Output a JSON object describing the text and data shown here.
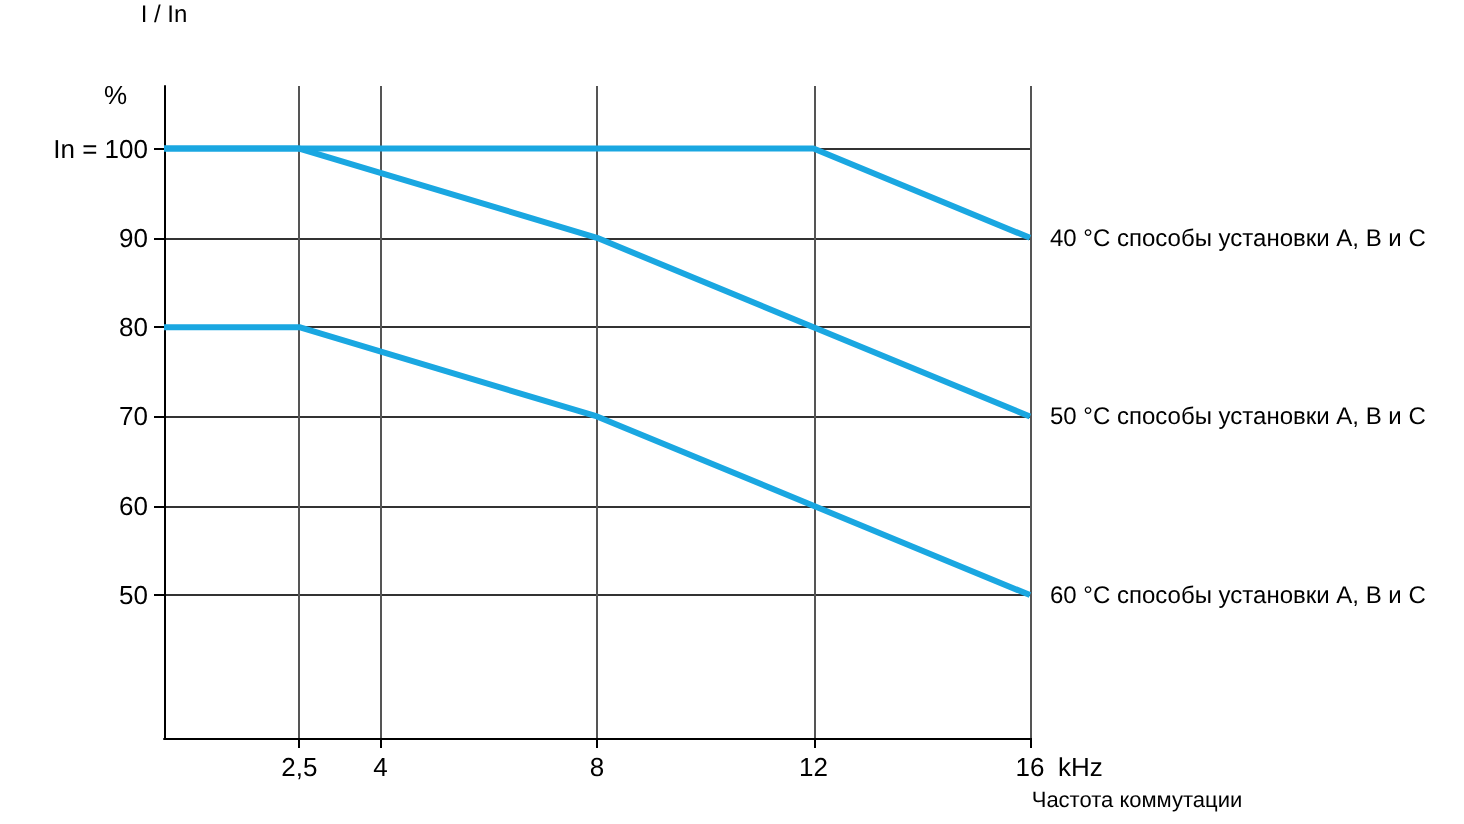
{
  "chart_data": {
    "type": "line",
    "ylabel": "I / In",
    "xlabel": "Частота коммутации",
    "annotations": [
      "%",
      "kHz"
    ],
    "xlim": [
      0,
      16
    ],
    "xticks": [
      {
        "value": 2.5,
        "label": "2,5"
      },
      4,
      8,
      12,
      16
    ],
    "ylim": [
      34,
      107
    ],
    "yticks": [
      50,
      60,
      70,
      80,
      90,
      {
        "value": 100,
        "label": "In = 100"
      }
    ],
    "grid": true,
    "legend": false,
    "marker": "none",
    "line_style": "solid",
    "series": [
      {
        "name": "40 °C способы установки А, В и С",
        "color": "#1aa7e1",
        "x": [
          0,
          2.5,
          12,
          16
        ],
        "values": [
          100,
          100,
          100,
          90
        ]
      },
      {
        "name": "50 °C способы установки А, В и С",
        "color": "#1aa7e1",
        "x": [
          0,
          2.5,
          8,
          12,
          16
        ],
        "values": [
          100,
          100,
          90,
          80,
          70
        ]
      },
      {
        "name": "60 °C способы установки А, В и С",
        "color": "#1aa7e1",
        "x": [
          0,
          2.5,
          8,
          12,
          16
        ],
        "values": [
          80,
          80,
          70,
          60,
          50
        ]
      }
    ]
  }
}
